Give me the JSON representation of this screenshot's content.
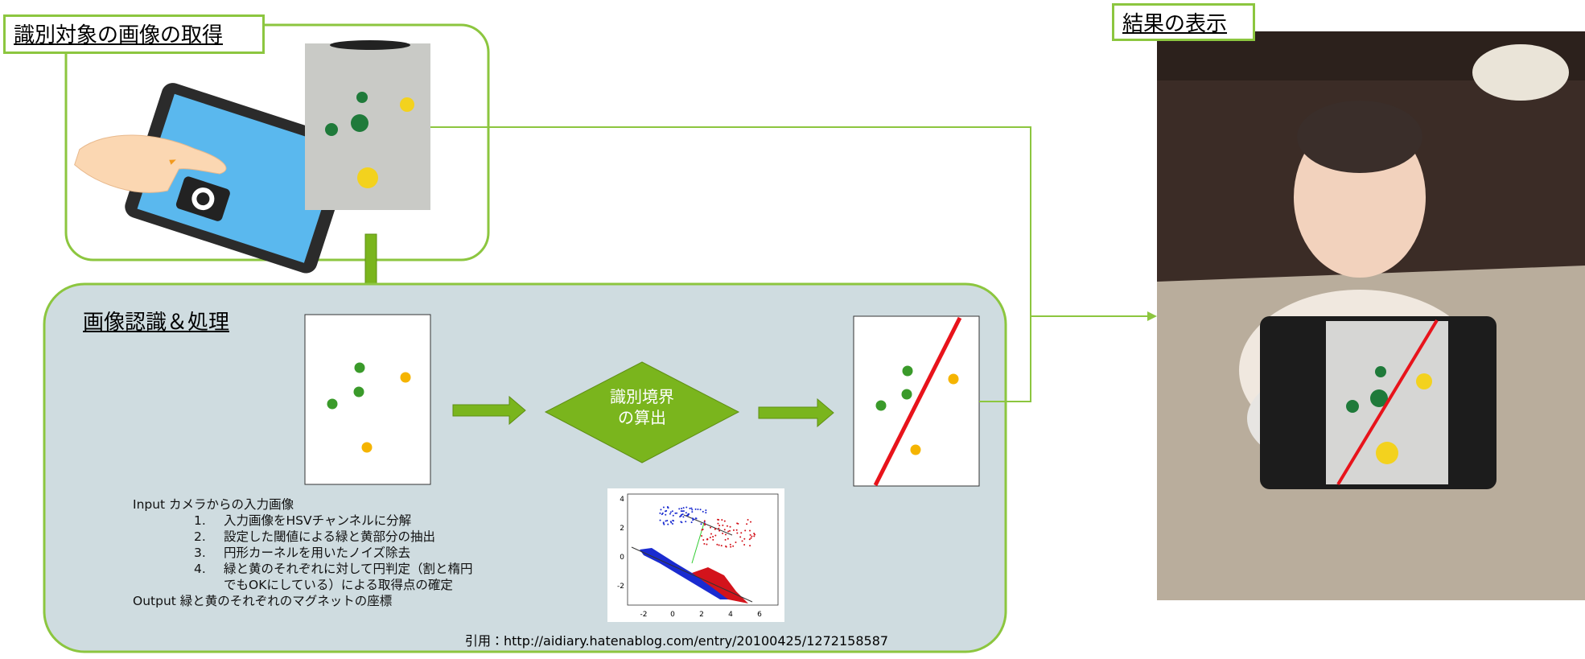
{
  "sections": {
    "acquire": "識別対象の画像の取得",
    "process": "画像認識＆処理",
    "result": "結果の表示"
  },
  "diamond": {
    "lines": [
      "識別境界",
      "の算出"
    ]
  },
  "steps": {
    "input": "Input カメラからの入力画像",
    "items": [
      {
        "number": "1.",
        "text": "入力画像をHSVチャンネルに分解"
      },
      {
        "number": "2.",
        "text": "設定した閾値による緑と黄部分の抽出"
      },
      {
        "number": "3.",
        "text": "円形カーネルを用いたノイズ除去"
      },
      {
        "number": "4.",
        "text": "緑と黄のそれぞれに対して円判定（割と楕円でもOKにしている）による取得点の確定"
      }
    ],
    "output": "Output 緑と黄のそれぞれのマグネットの座標"
  },
  "citation_figure": {
    "xticks": [
      -2,
      0,
      2,
      4,
      6
    ],
    "yticks": [
      4,
      2,
      0,
      -2
    ]
  },
  "citation": "引用：http://aidiary.hatenablog.com/entry/20100425/1272158587"
}
